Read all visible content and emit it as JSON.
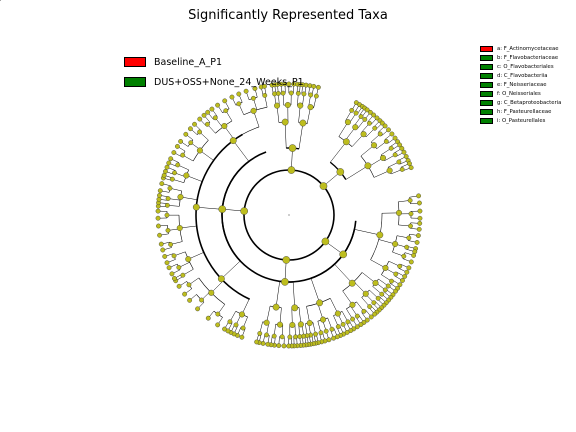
{
  "chart_data": {
    "type": "cladogram",
    "title": "Significantly Represented Taxa",
    "classes": [
      {
        "name": "Baseline_A_P1",
        "color": "#ff0000"
      },
      {
        "name": "DUS+OSS+None_24_Weeks_P1",
        "color": "#008000"
      }
    ],
    "highlighted_taxa": [
      {
        "id": "a",
        "label": "a: F_Actinomycetaceae",
        "class": "Baseline_A_P1",
        "angle_deg": 83
      },
      {
        "id": "b",
        "label": "b: F_Flavobacteriaceae",
        "class": "DUS+OSS+None_24_Weeks_P1",
        "angle_deg": 5
      },
      {
        "id": "c",
        "label": "c: O_Flavobacteriales",
        "class": "DUS+OSS+None_24_Weeks_P1",
        "angle_deg": 5
      },
      {
        "id": "d",
        "label": "d: C_Flavobacteriia",
        "class": "DUS+OSS+None_24_Weeks_P1",
        "angle_deg": 5
      },
      {
        "id": "e",
        "label": "e: F_Neisseriaceae",
        "class": "DUS+OSS+None_24_Weeks_P1",
        "angle_deg": 157
      },
      {
        "id": "f",
        "label": "f: O_Neisseriales",
        "class": "DUS+OSS+None_24_Weeks_P1",
        "angle_deg": 157
      },
      {
        "id": "g",
        "label": "g: C_Betaproteobacteria",
        "class": "DUS+OSS+None_24_Weeks_P1",
        "angle_deg": 157
      },
      {
        "id": "h",
        "label": "h: F_Pasteurellaceae",
        "class": "DUS+OSS+None_24_Weeks_P1",
        "angle_deg": 138
      },
      {
        "id": "i",
        "label": "i: O_Pasteurellales",
        "class": "DUS+OSS+None_24_Weeks_P1",
        "angle_deg": 138
      }
    ],
    "node_color": "#bdbd1e",
    "ring_levels": 6
  }
}
